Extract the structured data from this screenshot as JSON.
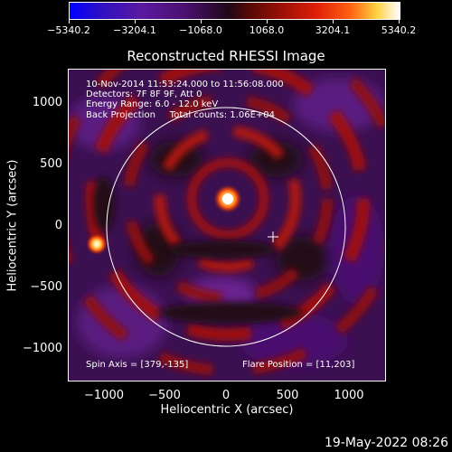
{
  "colorbar": {
    "tick_labels": [
      "−5340.2",
      "−3204.1",
      "−1068.0",
      "1068.0",
      "3204.1",
      "5340.2"
    ],
    "min": -5340.2,
    "max": 5340.2
  },
  "title": "Reconstructed RHESSI Image",
  "info_lines": {
    "l1": "10-Nov-2014 11:53:24.000 to 11:56:08.000",
    "l2": "Detectors: 7F 8F 9F, Att 0",
    "l3": "Energy Range: 6.0 - 12.0 keV",
    "l4": "Back Projection     Total counts: 1.06E+04"
  },
  "spin_axis": "Spin Axis = [379,-135]",
  "flare_position": "Flare Position = [11,203]",
  "axes": {
    "x_label": "Heliocentric X (arcsec)",
    "y_label": "Heliocentric Y (arcsec)",
    "x_ticks": [
      "−1000",
      "−500",
      "0",
      "500",
      "1000"
    ],
    "y_ticks": [
      "1000",
      "500",
      "0",
      "−500",
      "−1000"
    ]
  },
  "timestamp": "19-May-2022 08:26",
  "colors": {
    "background": "#000000",
    "text": "#ffffff",
    "limb": "#ffffff"
  }
}
